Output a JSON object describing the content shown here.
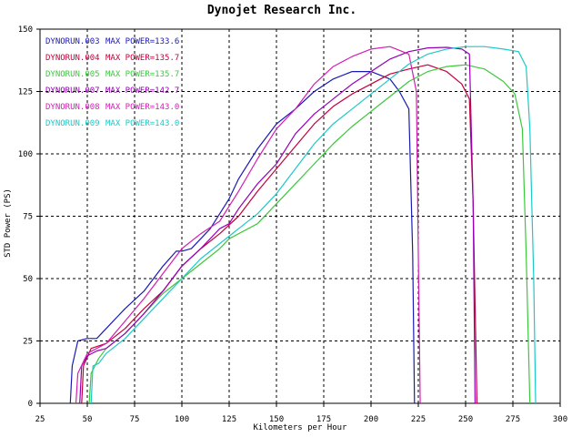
{
  "chart_data": {
    "type": "line",
    "title": "Dynojet  Research  Inc.",
    "xlabel": "Kilometers per Hour",
    "ylabel": "STD Power (PS)",
    "xlim": [
      25,
      300
    ],
    "ylim": [
      0,
      150
    ],
    "x_ticks": [
      25,
      50,
      75,
      100,
      125,
      150,
      175,
      200,
      225,
      250,
      275,
      300
    ],
    "y_ticks": [
      0,
      25,
      50,
      75,
      100,
      125,
      150
    ],
    "grid": true,
    "legend_position": "top-left",
    "series": [
      {
        "name": "DYNORUN.003",
        "max_label": "MAX POWER=133.6",
        "color": "#1a1ab4",
        "points": [
          [
            41,
            0
          ],
          [
            42,
            15
          ],
          [
            45,
            25
          ],
          [
            50,
            26
          ],
          [
            55,
            26
          ],
          [
            60,
            30
          ],
          [
            70,
            38
          ],
          [
            80,
            45
          ],
          [
            90,
            55
          ],
          [
            97,
            61
          ],
          [
            100,
            61
          ],
          [
            105,
            62
          ],
          [
            110,
            66
          ],
          [
            115,
            70
          ],
          [
            120,
            76
          ],
          [
            125,
            82
          ],
          [
            130,
            90
          ],
          [
            140,
            102
          ],
          [
            150,
            112
          ],
          [
            160,
            118
          ],
          [
            170,
            125
          ],
          [
            180,
            130
          ],
          [
            190,
            133
          ],
          [
            200,
            133
          ],
          [
            210,
            130
          ],
          [
            215,
            125
          ],
          [
            220,
            118
          ],
          [
            222,
            60
          ],
          [
            223,
            0
          ]
        ]
      },
      {
        "name": "DYNORUN.004",
        "max_label": "MAX POWER=135.7",
        "color": "#c4003c",
        "points": [
          [
            47,
            0
          ],
          [
            48,
            15
          ],
          [
            52,
            22
          ],
          [
            60,
            24
          ],
          [
            70,
            30
          ],
          [
            80,
            38
          ],
          [
            90,
            45
          ],
          [
            100,
            55
          ],
          [
            110,
            62
          ],
          [
            120,
            68
          ],
          [
            130,
            75
          ],
          [
            140,
            85
          ],
          [
            150,
            94
          ],
          [
            160,
            103
          ],
          [
            170,
            112
          ],
          [
            180,
            119
          ],
          [
            190,
            124
          ],
          [
            200,
            128
          ],
          [
            210,
            132
          ],
          [
            220,
            134
          ],
          [
            230,
            135.7
          ],
          [
            240,
            133
          ],
          [
            248,
            128
          ],
          [
            252,
            122
          ],
          [
            254,
            80
          ],
          [
            256,
            0
          ]
        ]
      },
      {
        "name": "DYNORUN.005",
        "max_label": "MAX POWER=135.7",
        "color": "#3cc83c",
        "points": [
          [
            51,
            0
          ],
          [
            52,
            12
          ],
          [
            56,
            18
          ],
          [
            60,
            22
          ],
          [
            70,
            28
          ],
          [
            80,
            36
          ],
          [
            90,
            44
          ],
          [
            100,
            50
          ],
          [
            110,
            56
          ],
          [
            120,
            62
          ],
          [
            125,
            66
          ],
          [
            130,
            68
          ],
          [
            140,
            72
          ],
          [
            150,
            80
          ],
          [
            160,
            88
          ],
          [
            170,
            96
          ],
          [
            180,
            104
          ],
          [
            190,
            111
          ],
          [
            200,
            117
          ],
          [
            210,
            123
          ],
          [
            220,
            129
          ],
          [
            230,
            133
          ],
          [
            240,
            135
          ],
          [
            250,
            135.7
          ],
          [
            260,
            134
          ],
          [
            270,
            129
          ],
          [
            276,
            124
          ],
          [
            280,
            110
          ],
          [
            282,
            60
          ],
          [
            284,
            0
          ]
        ]
      },
      {
        "name": "DYNORUN.007",
        "max_label": "MAX POWER=142.7",
        "color": "#9600b4",
        "points": [
          [
            46,
            0
          ],
          [
            47,
            15
          ],
          [
            50,
            19
          ],
          [
            55,
            21
          ],
          [
            60,
            22
          ],
          [
            70,
            28
          ],
          [
            80,
            36
          ],
          [
            90,
            45
          ],
          [
            100,
            55
          ],
          [
            110,
            62
          ],
          [
            120,
            70
          ],
          [
            125,
            72
          ],
          [
            130,
            78
          ],
          [
            140,
            88
          ],
          [
            150,
            96
          ],
          [
            160,
            108
          ],
          [
            170,
            116
          ],
          [
            180,
            122
          ],
          [
            190,
            128
          ],
          [
            200,
            133
          ],
          [
            210,
            138
          ],
          [
            220,
            141
          ],
          [
            230,
            142.5
          ],
          [
            240,
            142.7
          ],
          [
            248,
            142
          ],
          [
            252,
            140
          ],
          [
            254,
            80
          ],
          [
            255,
            0
          ]
        ]
      },
      {
        "name": "DYNORUN.008",
        "max_label": "MAX POWER=143.0",
        "color": "#d21eb4",
        "points": [
          [
            44,
            0
          ],
          [
            45,
            12
          ],
          [
            50,
            20
          ],
          [
            60,
            24
          ],
          [
            70,
            33
          ],
          [
            80,
            42
          ],
          [
            90,
            52
          ],
          [
            100,
            62
          ],
          [
            110,
            68
          ],
          [
            120,
            73
          ],
          [
            130,
            85
          ],
          [
            140,
            98
          ],
          [
            150,
            110
          ],
          [
            160,
            118
          ],
          [
            170,
            128
          ],
          [
            180,
            135
          ],
          [
            190,
            139
          ],
          [
            200,
            142
          ],
          [
            210,
            143
          ],
          [
            220,
            140
          ],
          [
            224,
            125
          ],
          [
            225,
            60
          ],
          [
            226,
            0
          ]
        ]
      },
      {
        "name": "DYNORUN.009",
        "max_label": "MAX POWER=143.0",
        "color": "#1ec8c8",
        "points": [
          [
            52,
            0
          ],
          [
            53,
            15
          ],
          [
            56,
            16
          ],
          [
            60,
            20
          ],
          [
            70,
            26
          ],
          [
            80,
            34
          ],
          [
            90,
            42
          ],
          [
            100,
            50
          ],
          [
            110,
            58
          ],
          [
            120,
            64
          ],
          [
            130,
            70
          ],
          [
            140,
            76
          ],
          [
            150,
            84
          ],
          [
            160,
            94
          ],
          [
            170,
            104
          ],
          [
            180,
            112
          ],
          [
            190,
            118
          ],
          [
            200,
            124
          ],
          [
            210,
            130
          ],
          [
            220,
            136
          ],
          [
            230,
            140
          ],
          [
            240,
            142
          ],
          [
            250,
            143
          ],
          [
            260,
            143
          ],
          [
            270,
            142
          ],
          [
            278,
            141
          ],
          [
            282,
            135
          ],
          [
            284,
            110
          ],
          [
            286,
            50
          ],
          [
            287,
            0
          ]
        ]
      }
    ]
  }
}
